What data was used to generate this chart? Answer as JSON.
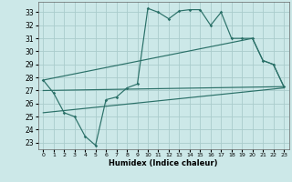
{
  "bg_color": "#cce8e8",
  "grid_color": "#aacccc",
  "line_color": "#2a7068",
  "xlabel": "Humidex (Indice chaleur)",
  "x_ticks": [
    0,
    1,
    2,
    3,
    4,
    5,
    6,
    7,
    8,
    9,
    10,
    11,
    12,
    13,
    14,
    15,
    16,
    17,
    18,
    19,
    20,
    21,
    22,
    23
  ],
  "y_ticks": [
    23,
    24,
    25,
    26,
    27,
    28,
    29,
    30,
    31,
    32,
    33
  ],
  "xlim": [
    -0.5,
    23.5
  ],
  "ylim": [
    22.5,
    33.8
  ],
  "line1_x": [
    0,
    1,
    2,
    3,
    4,
    5,
    6,
    7,
    8,
    9,
    10,
    11,
    12,
    13,
    14,
    15,
    16,
    17,
    18,
    19,
    20,
    21,
    22,
    23
  ],
  "line1_y": [
    27.8,
    26.8,
    25.3,
    25.0,
    23.5,
    22.8,
    26.3,
    26.5,
    27.2,
    27.5,
    33.3,
    33.0,
    32.5,
    33.1,
    33.2,
    33.2,
    32.0,
    33.0,
    31.0,
    31.0,
    31.0,
    29.3,
    29.0,
    27.3
  ],
  "line2_x": [
    0,
    20,
    21,
    22,
    23
  ],
  "line2_y": [
    27.8,
    31.0,
    29.3,
    29.0,
    27.3
  ],
  "line3_x": [
    0,
    23
  ],
  "line3_y": [
    27.0,
    27.3
  ],
  "line4_x": [
    0,
    23
  ],
  "line4_y": [
    25.3,
    27.2
  ]
}
